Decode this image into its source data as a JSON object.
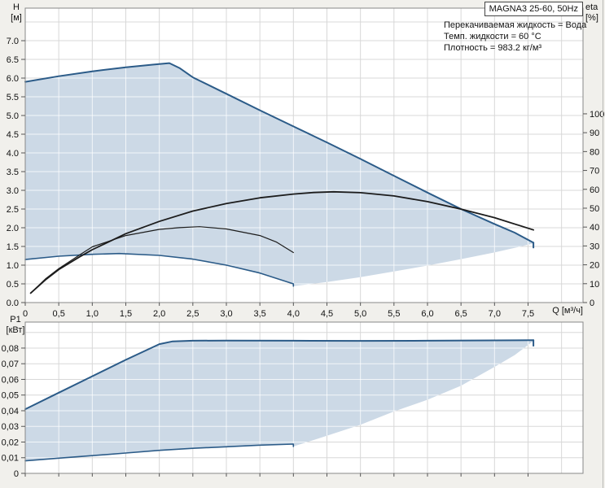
{
  "title": "MAGNA3 25-60, 50Hz",
  "info_lines": [
    "Перекачиваемая жидкость = Вода",
    "Темп. жидкости = 60 °C",
    "Плотность = 983.2 кг/м³"
  ],
  "colors": {
    "background": "#f1f0ec",
    "plot_background": "#ffffff",
    "grid": "#d8d8d8",
    "grid_on_fill": "rgba(255,255,255,0.75)",
    "envelope_fill": "#ccd9e6",
    "pump_curve_blue": "#2b5b88",
    "efficiency_black": "#1c1c1c",
    "axis": "#888888",
    "tick": "#555555",
    "text": "#111111"
  },
  "chart_data": [
    {
      "type": "area",
      "name": "hq",
      "xlabel": "Q [м³/ч]",
      "ylabel_left": [
        "H",
        "[м]"
      ],
      "ylabel_right": [
        "eta",
        "[%]"
      ],
      "xlim": [
        0,
        8.32
      ],
      "ylim_left": [
        0,
        7.87
      ],
      "ylim_right": [
        0,
        156
      ],
      "x_grid_step": 0.5,
      "y_grid_step": 0.5,
      "x_tick_values": [
        0,
        0.5,
        1,
        1.5,
        2,
        2.5,
        3,
        3.5,
        4,
        4.5,
        5,
        5.5,
        6,
        6.5,
        7,
        7.5
      ],
      "x_tick_labels": [
        "0",
        "0,5",
        "1,0",
        "1,5",
        "2,0",
        "2,5",
        "3,0",
        "3,5",
        "4,0",
        "4,5",
        "5,0",
        "5,5",
        "6,0",
        "6,5",
        "7,0",
        "7,5"
      ],
      "y_tick_values": [
        0,
        0.5,
        1,
        1.5,
        2,
        2.5,
        3,
        3.5,
        4,
        4.5,
        5,
        5.5,
        6,
        6.5,
        7
      ],
      "y_tick_labels": [
        "0.0",
        "0.5",
        "1.0",
        "1.5",
        "2.0",
        "2.5",
        "3.0",
        "3.5",
        "4.0",
        "4.5",
        "5.0",
        "5.5",
        "6.0",
        "6.5",
        "7.0"
      ],
      "right_tick_values": [
        0,
        10,
        20,
        30,
        40,
        50,
        60,
        70,
        80,
        90,
        100
      ],
      "right_tick_labels": [
        "0",
        "10",
        "20",
        "30",
        "40",
        "50",
        "60",
        "70",
        "80",
        "90",
        "100"
      ],
      "series": [
        {
          "name": "max_speed_curve",
          "axis": "left",
          "color": "blue",
          "width": 2,
          "points": [
            [
              0,
              5.9
            ],
            [
              0.5,
              6.05
            ],
            [
              1.0,
              6.18
            ],
            [
              1.5,
              6.29
            ],
            [
              1.9,
              6.36
            ],
            [
              2.15,
              6.4
            ],
            [
              2.3,
              6.27
            ],
            [
              2.5,
              6.02
            ],
            [
              3.0,
              5.58
            ],
            [
              3.5,
              5.14
            ],
            [
              4.0,
              4.71
            ],
            [
              4.5,
              4.28
            ],
            [
              5.0,
              3.84
            ],
            [
              5.5,
              3.39
            ],
            [
              6.0,
              2.94
            ],
            [
              6.5,
              2.5
            ],
            [
              7.0,
              2.1
            ],
            [
              7.3,
              1.87
            ],
            [
              7.58,
              1.6
            ]
          ]
        },
        {
          "name": "max_speed_end_tick",
          "axis": "left",
          "color": "blue",
          "width": 2,
          "points": [
            [
              7.58,
              1.6
            ],
            [
              7.58,
              1.47
            ]
          ]
        },
        {
          "name": "min_speed_curve",
          "axis": "left",
          "color": "blue",
          "width": 1.6,
          "points": [
            [
              0,
              1.15
            ],
            [
              0.5,
              1.24
            ],
            [
              1.0,
              1.29
            ],
            [
              1.4,
              1.31
            ],
            [
              2.0,
              1.26
            ],
            [
              2.5,
              1.16
            ],
            [
              3.0,
              1.0
            ],
            [
              3.5,
              0.79
            ],
            [
              4.0,
              0.5
            ],
            [
              4.0,
              0.44
            ]
          ]
        },
        {
          "name": "max_flow_limit",
          "axis": "left",
          "color": "none",
          "width": 0,
          "points": [
            [
              4.0,
              0.44
            ],
            [
              4.5,
              0.55
            ],
            [
              5.0,
              0.68
            ],
            [
              5.5,
              0.83
            ],
            [
              6.0,
              0.99
            ],
            [
              6.5,
              1.16
            ],
            [
              7.0,
              1.34
            ],
            [
              7.3,
              1.46
            ],
            [
              7.58,
              1.58
            ]
          ]
        },
        {
          "name": "eta_curve_max",
          "axis": "right",
          "color": "black",
          "width": 1.8,
          "points": [
            [
              0.08,
              5
            ],
            [
              0.3,
              12
            ],
            [
              0.5,
              17.5
            ],
            [
              0.8,
              24
            ],
            [
              1.0,
              28
            ],
            [
              1.5,
              36.5
            ],
            [
              2.0,
              43
            ],
            [
              2.5,
              48.5
            ],
            [
              3.0,
              52.5
            ],
            [
              3.5,
              55.5
            ],
            [
              4.0,
              57.5
            ],
            [
              4.3,
              58.3
            ],
            [
              4.6,
              58.7
            ],
            [
              5.0,
              58.2
            ],
            [
              5.5,
              56.5
            ],
            [
              6.0,
              53.5
            ],
            [
              6.5,
              49.5
            ],
            [
              7.0,
              45
            ],
            [
              7.58,
              38.5
            ]
          ]
        },
        {
          "name": "eta_curve_min",
          "axis": "right",
          "color": "black",
          "width": 1.2,
          "points": [
            [
              0.08,
              5
            ],
            [
              0.3,
              12.5
            ],
            [
              0.5,
              18
            ],
            [
              0.8,
              25
            ],
            [
              1.0,
              29.5
            ],
            [
              1.5,
              35.5
            ],
            [
              2.0,
              38.8
            ],
            [
              2.3,
              39.7
            ],
            [
              2.6,
              40.2
            ],
            [
              3.0,
              39
            ],
            [
              3.5,
              35.5
            ],
            [
              3.75,
              32
            ],
            [
              4.0,
              26.5
            ]
          ]
        }
      ],
      "area": {
        "chain": [
          {
            "ref": "max_speed_curve",
            "reverse": false
          },
          {
            "ref": "max_flow_limit",
            "reverse": true
          },
          {
            "ref": "min_speed_curve",
            "reverse": true
          }
        ]
      }
    },
    {
      "type": "area",
      "name": "power",
      "xlabel": "",
      "ylabel_left": [
        "P1",
        "[кВт]"
      ],
      "ylabel_right": null,
      "xlim": [
        0,
        8.32
      ],
      "ylim_left": [
        0,
        0.0966
      ],
      "x_grid_step": 0.5,
      "y_grid_step": 0.01,
      "x_tick_values": [
        0,
        0.5,
        1,
        1.5,
        2,
        2.5,
        3,
        3.5,
        4,
        4.5,
        5,
        5.5,
        6,
        6.5,
        7,
        7.5
      ],
      "x_tick_labels": [],
      "y_tick_values": [
        0,
        0.01,
        0.02,
        0.03,
        0.04,
        0.05,
        0.06,
        0.07,
        0.08
      ],
      "y_tick_labels": [
        "0",
        "0,01",
        "0,02",
        "0,03",
        "0,04",
        "0,05",
        "0,06",
        "0,07",
        "0,08"
      ],
      "series": [
        {
          "name": "p1_max_curve",
          "axis": "left",
          "color": "blue",
          "width": 2,
          "points": [
            [
              0,
              0.041
            ],
            [
              0.5,
              0.0515
            ],
            [
              1.0,
              0.062
            ],
            [
              1.5,
              0.0725
            ],
            [
              2.0,
              0.0825
            ],
            [
              2.2,
              0.0843
            ],
            [
              2.5,
              0.0847
            ],
            [
              3.0,
              0.0848
            ],
            [
              4.0,
              0.0847
            ],
            [
              5.0,
              0.0846
            ],
            [
              6.0,
              0.0847
            ],
            [
              7.0,
              0.0849
            ],
            [
              7.58,
              0.085
            ]
          ]
        },
        {
          "name": "p1_max_end_tick",
          "axis": "left",
          "color": "blue",
          "width": 2,
          "points": [
            [
              7.58,
              0.085
            ],
            [
              7.58,
              0.0815
            ]
          ]
        },
        {
          "name": "p1_min_curve",
          "axis": "left",
          "color": "blue",
          "width": 1.6,
          "points": [
            [
              0,
              0.008
            ],
            [
              0.5,
              0.0097
            ],
            [
              1.0,
              0.0113
            ],
            [
              1.5,
              0.013
            ],
            [
              2.0,
              0.0147
            ],
            [
              2.5,
              0.016
            ],
            [
              3.0,
              0.017
            ],
            [
              3.5,
              0.018
            ],
            [
              4.0,
              0.0187
            ],
            [
              4.0,
              0.0172
            ]
          ]
        },
        {
          "name": "p1_flow_limit",
          "axis": "left",
          "color": "none",
          "width": 0,
          "points": [
            [
              4.0,
              0.0172
            ],
            [
              4.5,
              0.024
            ],
            [
              5.0,
              0.031
            ],
            [
              5.5,
              0.0395
            ],
            [
              6.0,
              0.047
            ],
            [
              6.5,
              0.056
            ],
            [
              7.0,
              0.068
            ],
            [
              7.3,
              0.0755
            ],
            [
              7.58,
              0.0845
            ]
          ]
        }
      ],
      "area": {
        "chain": [
          {
            "ref": "p1_max_curve",
            "reverse": false
          },
          {
            "ref": "p1_flow_limit",
            "reverse": true
          },
          {
            "ref": "p1_min_curve",
            "reverse": true
          }
        ]
      }
    }
  ]
}
